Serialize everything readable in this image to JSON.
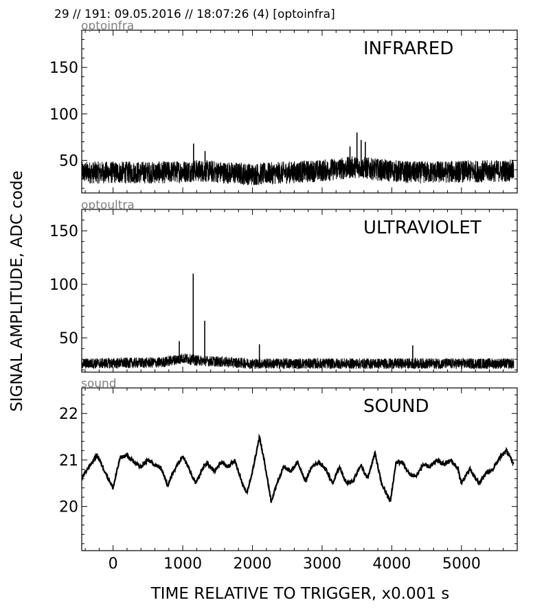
{
  "header": {
    "text": "29 // 191:   09.05.2016 // 18:07:26 (4)  [optoinfra]"
  },
  "chart_data": {
    "type": "line",
    "ylabel": "SIGNAL AMPLITUDE,  ADC code",
    "xlabel": "TIME RELATIVE TO TRIGGER,   x0.001 s",
    "xlim": [
      -450,
      5800
    ],
    "x_ticks": [
      0,
      1000,
      2000,
      3000,
      4000,
      5000
    ],
    "x_tick_labels": [
      "0",
      "1000",
      "2000",
      "3000",
      "4000",
      "5000"
    ],
    "panels": [
      {
        "corner_label": "optoinfra",
        "title": "INFRARED",
        "ylim": [
          15,
          190
        ],
        "y_ticks": [
          50,
          100,
          150
        ],
        "y_tick_labels": [
          "50",
          "100",
          "150"
        ],
        "baseline": 37,
        "noise_amplitude": 12,
        "envelope": [
          [
            -450,
            0
          ],
          [
            700,
            0
          ],
          [
            1200,
            2
          ],
          [
            2000,
            -2
          ],
          [
            3000,
            2
          ],
          [
            3500,
            6
          ],
          [
            3800,
            3
          ],
          [
            4300,
            0
          ],
          [
            5800,
            2
          ]
        ],
        "spikes": [
          [
            1155,
            68
          ],
          [
            1320,
            60
          ],
          [
            3400,
            65
          ],
          [
            3500,
            80
          ],
          [
            3560,
            72
          ],
          [
            3620,
            70
          ]
        ]
      },
      {
        "corner_label": "optoultra",
        "title": "ULTRAVIOLET",
        "ylim": [
          18,
          170
        ],
        "y_ticks": [
          50,
          100,
          150
        ],
        "y_tick_labels": [
          "50",
          "100",
          "150"
        ],
        "baseline": 26,
        "noise_amplitude": 5,
        "envelope": [
          [
            -450,
            0
          ],
          [
            700,
            1
          ],
          [
            1000,
            5
          ],
          [
            1200,
            3
          ],
          [
            2000,
            0
          ],
          [
            5800,
            0
          ]
        ],
        "spikes": [
          [
            1150,
            110
          ],
          [
            1315,
            66
          ],
          [
            950,
            47
          ],
          [
            2100,
            44
          ],
          [
            4300,
            43
          ]
        ]
      },
      {
        "corner_label": "sound",
        "title": "SOUND",
        "ylim": [
          19.05,
          22.55
        ],
        "y_ticks": [
          20,
          21,
          22
        ],
        "y_tick_labels": [
          "20",
          "21",
          "22"
        ],
        "curve": [
          [
            -450,
            20.6
          ],
          [
            -350,
            20.85
          ],
          [
            -230,
            21.1
          ],
          [
            -100,
            20.7
          ],
          [
            0,
            20.4
          ],
          [
            100,
            21.05
          ],
          [
            200,
            21.1
          ],
          [
            300,
            20.95
          ],
          [
            400,
            20.85
          ],
          [
            500,
            21.0
          ],
          [
            600,
            20.9
          ],
          [
            700,
            20.8
          ],
          [
            780,
            20.45
          ],
          [
            900,
            20.85
          ],
          [
            1000,
            21.1
          ],
          [
            1080,
            20.85
          ],
          [
            1180,
            20.5
          ],
          [
            1280,
            20.8
          ],
          [
            1350,
            20.95
          ],
          [
            1450,
            20.75
          ],
          [
            1550,
            20.95
          ],
          [
            1650,
            20.85
          ],
          [
            1750,
            21.0
          ],
          [
            1850,
            20.5
          ],
          [
            1920,
            20.3
          ],
          [
            2000,
            20.75
          ],
          [
            2100,
            21.5
          ],
          [
            2180,
            20.9
          ],
          [
            2270,
            20.1
          ],
          [
            2350,
            20.5
          ],
          [
            2450,
            20.85
          ],
          [
            2550,
            20.75
          ],
          [
            2650,
            20.95
          ],
          [
            2760,
            20.55
          ],
          [
            2850,
            20.85
          ],
          [
            2950,
            20.95
          ],
          [
            3050,
            20.8
          ],
          [
            3150,
            20.5
          ],
          [
            3250,
            20.85
          ],
          [
            3350,
            20.5
          ],
          [
            3450,
            20.55
          ],
          [
            3550,
            20.9
          ],
          [
            3650,
            20.6
          ],
          [
            3760,
            21.15
          ],
          [
            3850,
            20.5
          ],
          [
            3980,
            20.1
          ],
          [
            4060,
            20.95
          ],
          [
            4150,
            20.95
          ],
          [
            4250,
            20.7
          ],
          [
            4350,
            20.65
          ],
          [
            4450,
            20.9
          ],
          [
            4550,
            20.85
          ],
          [
            4650,
            21.0
          ],
          [
            4750,
            20.9
          ],
          [
            4850,
            21.0
          ],
          [
            4950,
            20.8
          ],
          [
            5000,
            20.5
          ],
          [
            5120,
            20.8
          ],
          [
            5250,
            20.5
          ],
          [
            5350,
            20.7
          ],
          [
            5450,
            20.8
          ],
          [
            5550,
            21.05
          ],
          [
            5650,
            21.2
          ],
          [
            5750,
            20.9
          ]
        ],
        "noise_amplitude": 0.04
      }
    ]
  }
}
